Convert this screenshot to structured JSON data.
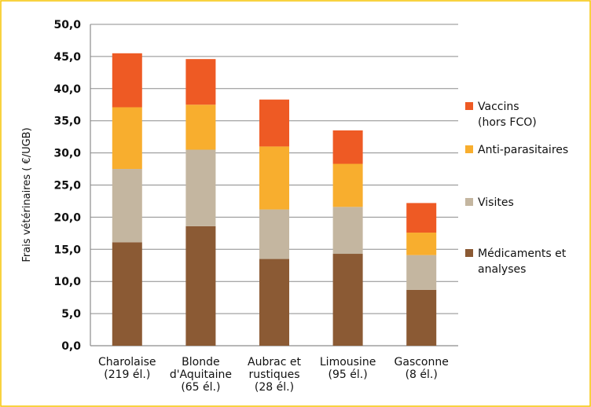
{
  "chart_data": {
    "type": "bar",
    "stacked": true,
    "ylabel": "Frais vétérinaires ( €/UGB)",
    "ylim": [
      0,
      50
    ],
    "yticks": [
      "0,0",
      "5,0",
      "10,0",
      "15,0",
      "20,0",
      "25,0",
      "30,0",
      "35,0",
      "40,0",
      "45,0",
      "50,0"
    ],
    "grid": true,
    "legend_position": "right",
    "categories": [
      [
        "Charolaise",
        "(219 él.)"
      ],
      [
        "Blonde",
        "d'Aquitaine",
        "(65 él.)"
      ],
      [
        "Aubrac et",
        "rustiques",
        "(28 él.)"
      ],
      [
        "Limousine",
        "(95 él.)"
      ],
      [
        "Gasconne",
        "(8 él.)"
      ]
    ],
    "series": [
      {
        "name": [
          "Médicaments et",
          "analyses"
        ],
        "color": "#8b5a34",
        "values": [
          16.1,
          18.6,
          13.5,
          14.3,
          8.7
        ]
      },
      {
        "name": [
          "Visites"
        ],
        "color": "#c4b6a0",
        "values": [
          11.4,
          11.9,
          7.7,
          7.3,
          5.4
        ]
      },
      {
        "name": [
          "Anti-parasitaires"
        ],
        "color": "#f8ae2e",
        "values": [
          9.6,
          7.0,
          9.8,
          6.7,
          3.5
        ]
      },
      {
        "name": [
          "Vaccins",
          "(hors FCO)"
        ],
        "color": "#ee5a24",
        "values": [
          8.4,
          7.1,
          7.3,
          5.2,
          4.6
        ]
      }
    ]
  }
}
